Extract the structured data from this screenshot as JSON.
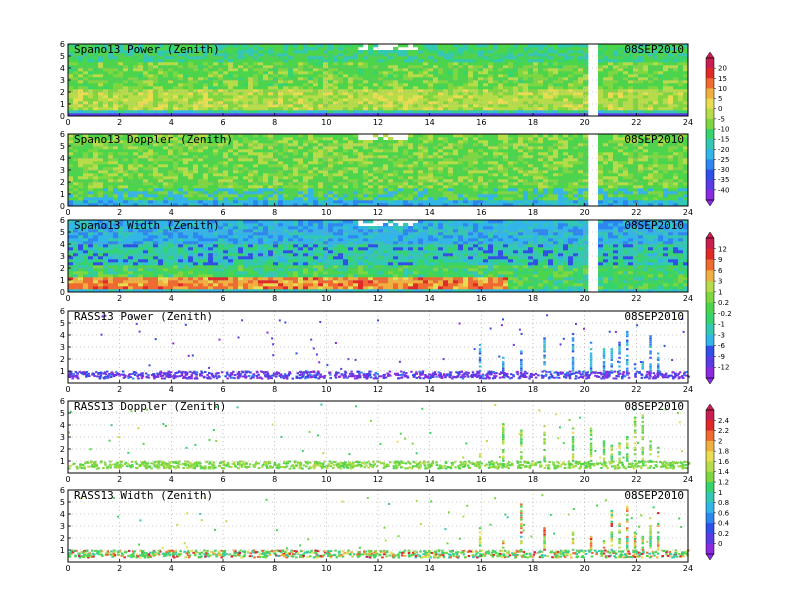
{
  "chart_data": [
    {
      "type": "heatmap",
      "title": "Spano13 Power (Zenith)",
      "date": "08SEP2010",
      "x_ticks": [
        0,
        2,
        4,
        6,
        8,
        10,
        12,
        14,
        16,
        18,
        20,
        22,
        24
      ],
      "y_ticks": [
        0,
        1,
        2,
        3,
        4,
        5,
        6
      ],
      "xlim": [
        0,
        24
      ],
      "ylim": [
        0,
        6
      ],
      "grid": true,
      "colorbar": {
        "labels": [
          "20",
          "15",
          "10",
          "5",
          "0",
          "-5",
          "-10",
          "-15",
          "-20",
          "-25",
          "-30",
          "-35",
          "-40"
        ]
      }
    },
    {
      "type": "heatmap",
      "title": "Spano13 Doppler (Zenith)",
      "date": "08SEP2010",
      "x_ticks": [
        0,
        2,
        4,
        6,
        8,
        10,
        12,
        14,
        16,
        18,
        20,
        22,
        24
      ],
      "y_ticks": [
        0,
        1,
        2,
        3,
        4,
        5,
        6
      ],
      "xlim": [
        0,
        24
      ],
      "ylim": [
        0,
        6
      ],
      "grid": true
    },
    {
      "type": "heatmap",
      "title": "Spano13 Width (Zenith)",
      "date": "08SEP2010",
      "x_ticks": [
        0,
        2,
        4,
        6,
        8,
        10,
        12,
        14,
        16,
        18,
        20,
        22,
        24
      ],
      "y_ticks": [
        0,
        1,
        2,
        3,
        4,
        5,
        6
      ],
      "xlim": [
        0,
        24
      ],
      "ylim": [
        0,
        6
      ],
      "grid": true,
      "colorbar": {
        "labels": [
          "12",
          "9",
          "6",
          "3",
          "1",
          "0.2",
          "-0.2",
          "-1",
          "-3",
          "-6",
          "-9",
          "-12"
        ]
      }
    },
    {
      "type": "scatter",
      "title": "RASS13 Power (Zenith)",
      "date": "08SEP2010",
      "x_ticks": [
        0,
        2,
        4,
        6,
        8,
        10,
        12,
        14,
        16,
        18,
        20,
        22,
        24
      ],
      "y_ticks": [
        1,
        2,
        3,
        4,
        5,
        6
      ],
      "xlim": [
        0,
        24
      ],
      "ylim": [
        0,
        6
      ],
      "grid": true
    },
    {
      "type": "scatter",
      "title": "RASS13 Doppler (Zenith)",
      "date": "08SEP2010",
      "x_ticks": [
        0,
        2,
        4,
        6,
        8,
        10,
        12,
        14,
        16,
        18,
        20,
        22,
        24
      ],
      "y_ticks": [
        1,
        2,
        3,
        4,
        5,
        6
      ],
      "xlim": [
        0,
        24
      ],
      "ylim": [
        0,
        6
      ],
      "grid": true,
      "colorbar": {
        "labels": [
          "2.4",
          "2.2",
          "2",
          "1.8",
          "1.6",
          "1.4",
          "1.2",
          "1",
          "0.8",
          "0.6",
          "0.4",
          "0.2",
          "0"
        ]
      }
    },
    {
      "type": "scatter",
      "title": "RASS13 Width (Zenith)",
      "date": "08SEP2010",
      "x_ticks": [
        0,
        2,
        4,
        6,
        8,
        10,
        12,
        14,
        16,
        18,
        20,
        22,
        24
      ],
      "y_ticks": [
        1,
        2,
        3,
        4,
        5,
        6
      ],
      "xlim": [
        0,
        24
      ],
      "ylim": [
        0,
        6
      ],
      "grid": true
    }
  ],
  "colors": {
    "scale": [
      "#8a2be2",
      "#5a3ce6",
      "#2f4fe8",
      "#2e86f0",
      "#33b5e8",
      "#33c8b4",
      "#36d36e",
      "#4cd44c",
      "#7ed640",
      "#b6dc4a",
      "#e8dc50",
      "#f0b040",
      "#ee6a30",
      "#e02a2a",
      "#c81e50"
    ],
    "axis": "#000000",
    "grid": "#9a9a9a"
  }
}
